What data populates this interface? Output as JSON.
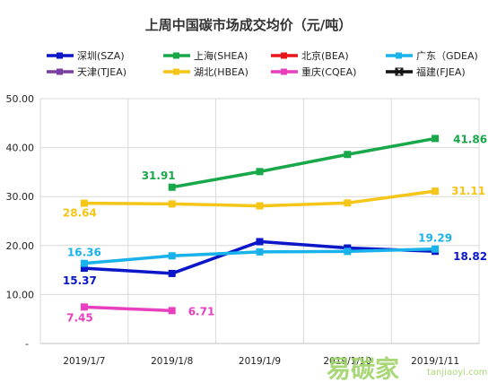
{
  "chart_data": {
    "type": "line",
    "title": "上周中国碳市场成交均价（元/吨）",
    "categories": [
      "2019/1/7",
      "2019/1/8",
      "2019/1/9",
      "2019/1/10",
      "2019/1/11"
    ],
    "ylim": [
      0,
      50
    ],
    "yticks": [
      "-",
      "10.00",
      "20.00",
      "30.00",
      "40.00",
      "50.00"
    ],
    "grid": true,
    "legend_position": "top",
    "series": [
      {
        "name": "深圳(SZA)",
        "color": "#0b16c8",
        "values": [
          15.37,
          14.3,
          20.8,
          19.5,
          18.82
        ],
        "labels": {
          "0": "15.37",
          "4": "18.82"
        }
      },
      {
        "name": "上海(SHEA)",
        "color": "#18a84a",
        "values": [
          null,
          31.91,
          35.1,
          38.6,
          41.86
        ],
        "labels": {
          "1": "31.91",
          "4": "41.86"
        }
      },
      {
        "name": "北京(BEA)",
        "color": "#e8161a",
        "values": [
          null,
          null,
          null,
          null,
          null
        ],
        "labels": {}
      },
      {
        "name": "广东（GDEA)",
        "color": "#1ab2ea",
        "values": [
          16.36,
          17.9,
          18.7,
          18.8,
          19.29
        ],
        "labels": {
          "0": "16.36",
          "4": "19.29"
        }
      },
      {
        "name": "天津(TJEA)",
        "color": "#7a3ea0",
        "values": [
          null,
          null,
          null,
          null,
          null
        ],
        "labels": {}
      },
      {
        "name": "湖北(HBEA)",
        "color": "#f5c518",
        "values": [
          28.64,
          28.5,
          28.1,
          28.7,
          31.11
        ],
        "labels": {
          "0": "28.64",
          "4": "31.11"
        }
      },
      {
        "name": "重庆(CQEA)",
        "color": "#e83fbf",
        "values": [
          7.45,
          6.71,
          null,
          null,
          null
        ],
        "labels": {
          "0": "7.45",
          "1": "6.71"
        }
      },
      {
        "name": "福建(FJEA)",
        "color": "#111111",
        "values": [
          null,
          null,
          null,
          null,
          null
        ],
        "labels": {}
      }
    ]
  },
  "watermark": {
    "text": "易碳家",
    "sub": "tanjiaoyi.com"
  }
}
